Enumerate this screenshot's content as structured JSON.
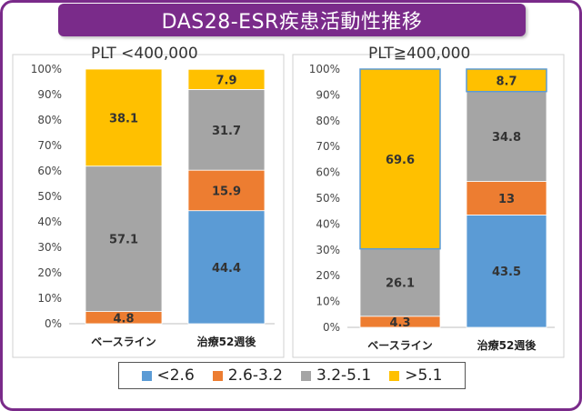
{
  "title": "DAS28-ESR疾患活動性推移",
  "colors": {
    "frame": "#7a2b8a",
    "lt26": "#5b9bd5",
    "mid": "#ed7d31",
    "high": "#a5a5a5",
    "gt51": "#ffc000"
  },
  "legend": [
    {
      "label": "<2.6",
      "color": "#5b9bd5"
    },
    {
      "label": "2.6-3.2",
      "color": "#ed7d31"
    },
    {
      "label": "3.2-5.1",
      "color": "#a5a5a5"
    },
    {
      "label": ">5.1",
      "color": "#ffc000"
    }
  ],
  "chart_data": [
    {
      "type": "bar",
      "stacked": true,
      "title": "PLT <400,000",
      "categories": [
        "ベースライン",
        "治療52週後"
      ],
      "ylim": [
        0,
        100
      ],
      "yticks": [
        "0%",
        "10%",
        "20%",
        "30%",
        "40%",
        "50%",
        "60%",
        "70%",
        "80%",
        "90%",
        "100%"
      ],
      "series": [
        {
          "name": "<2.6",
          "values": [
            0,
            44.4
          ],
          "labels": [
            "",
            "44.4"
          ]
        },
        {
          "name": "2.6-3.2",
          "values": [
            4.8,
            15.9
          ],
          "labels": [
            "4.8",
            "15.9"
          ]
        },
        {
          "name": "3.2-5.1",
          "values": [
            57.1,
            31.7
          ],
          "labels": [
            "57.1",
            "31.7"
          ]
        },
        {
          "name": ">5.1",
          "values": [
            38.1,
            7.9
          ],
          "labels": [
            "38.1",
            "7.9"
          ]
        }
      ]
    },
    {
      "type": "bar",
      "stacked": true,
      "title": "PLT≧400,000",
      "categories": [
        "ベースライン",
        "治療52週後"
      ],
      "ylim": [
        0,
        100
      ],
      "yticks": [
        "0%",
        "10%",
        "20%",
        "30%",
        "40%",
        "50%",
        "60%",
        "70%",
        "80%",
        "90%",
        "100%"
      ],
      "series": [
        {
          "name": "<2.6",
          "values": [
            0,
            43.5
          ],
          "labels": [
            "",
            "43.5"
          ]
        },
        {
          "name": "2.6-3.2",
          "values": [
            4.3,
            13
          ],
          "labels": [
            "4.3",
            "13"
          ]
        },
        {
          "name": "3.2-5.1",
          "values": [
            26.1,
            34.8
          ],
          "labels": [
            "26.1",
            "34.8"
          ]
        },
        {
          "name": ">5.1",
          "values": [
            69.6,
            8.7
          ],
          "labels": [
            "69.6",
            "8.7"
          ]
        }
      ]
    }
  ]
}
